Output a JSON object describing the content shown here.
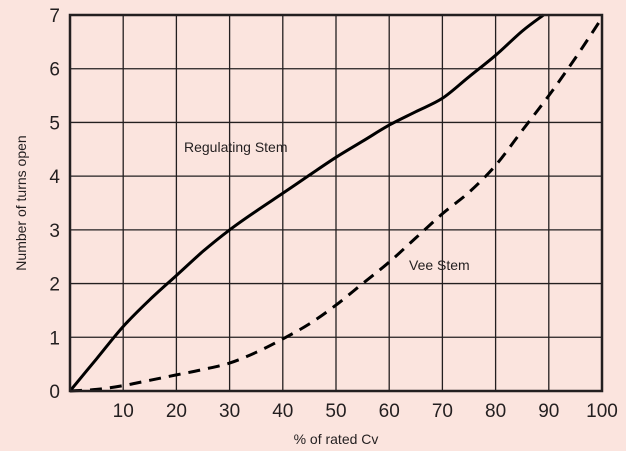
{
  "chart_data": {
    "type": "line",
    "title": "",
    "xlabel": "% of rated Cv",
    "ylabel": "Number of turns open",
    "xlim": [
      0,
      100
    ],
    "ylim": [
      0,
      7
    ],
    "x_ticks": [
      10,
      20,
      30,
      40,
      50,
      60,
      70,
      80,
      90,
      100
    ],
    "y_ticks": [
      0,
      1,
      2,
      3,
      4,
      5,
      6,
      7
    ],
    "grid": true,
    "legend": "none",
    "series": [
      {
        "name": "Regulating Stem",
        "line_style": "solid",
        "color": "#000000",
        "points": [
          [
            0,
            0
          ],
          [
            5,
            0.6
          ],
          [
            10,
            1.2
          ],
          [
            15,
            1.7
          ],
          [
            20,
            2.15
          ],
          [
            25,
            2.6
          ],
          [
            30,
            3.0
          ],
          [
            35,
            3.35
          ],
          [
            40,
            3.68
          ],
          [
            45,
            4.02
          ],
          [
            50,
            4.35
          ],
          [
            55,
            4.65
          ],
          [
            60,
            4.95
          ],
          [
            65,
            5.2
          ],
          [
            70,
            5.45
          ],
          [
            75,
            5.85
          ],
          [
            80,
            6.25
          ],
          [
            85,
            6.7
          ],
          [
            89,
            7.0
          ]
        ]
      },
      {
        "name": "Vee Stem",
        "line_style": "dashed",
        "color": "#000000",
        "points": [
          [
            0,
            0
          ],
          [
            5,
            0.03
          ],
          [
            10,
            0.1
          ],
          [
            15,
            0.2
          ],
          [
            20,
            0.3
          ],
          [
            25,
            0.4
          ],
          [
            30,
            0.52
          ],
          [
            35,
            0.72
          ],
          [
            40,
            0.97
          ],
          [
            45,
            1.25
          ],
          [
            50,
            1.6
          ],
          [
            55,
            2.0
          ],
          [
            60,
            2.4
          ],
          [
            65,
            2.85
          ],
          [
            70,
            3.3
          ],
          [
            75,
            3.7
          ],
          [
            80,
            4.2
          ],
          [
            85,
            4.85
          ],
          [
            90,
            5.5
          ],
          [
            95,
            6.2
          ],
          [
            100,
            6.95
          ]
        ]
      }
    ],
    "annotations": [
      "Regulating Stem",
      "Vee Stem"
    ]
  }
}
